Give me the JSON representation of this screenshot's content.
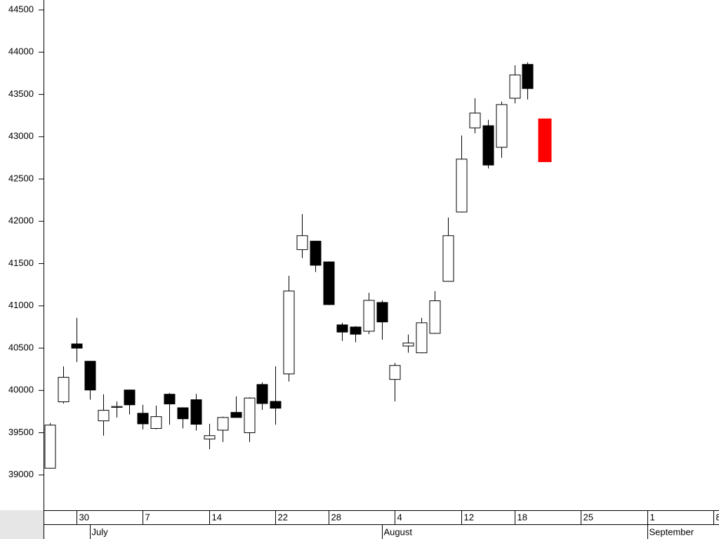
{
  "chart_data": {
    "type": "candlestick",
    "open": [
      39080,
      39865,
      40550,
      40345,
      39640,
      39800,
      40005,
      39730,
      39550,
      39955,
      39795,
      39890,
      39425,
      39530,
      39740,
      39500,
      40070,
      39870,
      40195,
      41665,
      41765,
      41520,
      40775,
      40750,
      40700,
      41040,
      40130,
      40525,
      40445,
      40675,
      41290,
      42110,
      43105,
      43130,
      42875,
      43455,
      43855
    ],
    "high": [
      39615,
      40285,
      40858,
      40345,
      39955,
      39870,
      40010,
      39830,
      39820,
      39970,
      39800,
      39960,
      39605,
      39690,
      39930,
      39920,
      40095,
      40285,
      41355,
      42085,
      41770,
      41525,
      40800,
      40760,
      41155,
      41065,
      40325,
      40660,
      40858,
      41175,
      42045,
      43015,
      43455,
      43200,
      43415,
      43845,
      43880
    ],
    "low": [
      39075,
      39845,
      40335,
      39890,
      39465,
      39680,
      39715,
      39540,
      39540,
      39595,
      39550,
      39525,
      39305,
      39390,
      39680,
      39390,
      39770,
      39595,
      40105,
      41565,
      41400,
      41010,
      40585,
      40570,
      40665,
      40600,
      39870,
      40445,
      40440,
      40670,
      41285,
      42105,
      43040,
      42625,
      42750,
      43395,
      43440
    ],
    "close": [
      39590,
      40155,
      40500,
      40005,
      39765,
      39810,
      39830,
      39605,
      39690,
      39840,
      39665,
      39600,
      39465,
      39680,
      39680,
      39910,
      39845,
      39790,
      41175,
      41830,
      41480,
      41015,
      40690,
      40665,
      41065,
      40810,
      40295,
      40560,
      40800,
      41060,
      41830,
      42735,
      43280,
      42665,
      43380,
      43730,
      43570
    ],
    "up_color": "#ffffff",
    "down_color": "#000000",
    "forecast": {
      "x": 37.3,
      "low": 42700,
      "high": 43215,
      "color": "#ff0000"
    },
    "ylim": [
      38600,
      44600
    ],
    "yticks": [
      39000,
      39500,
      40000,
      40500,
      41000,
      41500,
      42000,
      42500,
      43000,
      43500,
      44000,
      44500
    ],
    "xlim": [
      -0.5,
      50.4
    ],
    "xticks": [
      {
        "value": 2,
        "label": "30"
      },
      {
        "value": 7,
        "label": "7"
      },
      {
        "value": 12,
        "label": "14"
      },
      {
        "value": 17,
        "label": "22"
      },
      {
        "value": 21,
        "label": "28"
      },
      {
        "value": 26,
        "label": "4"
      },
      {
        "value": 31,
        "label": "12"
      },
      {
        "value": 35,
        "label": "18"
      },
      {
        "value": 40,
        "label": "25"
      },
      {
        "value": 45,
        "label": "1"
      },
      {
        "value": 50,
        "label": "8"
      }
    ],
    "month_ticks": [
      {
        "value": 3,
        "label": "July"
      },
      {
        "value": 25,
        "label": "August"
      },
      {
        "value": 45,
        "label": "September"
      }
    ]
  }
}
